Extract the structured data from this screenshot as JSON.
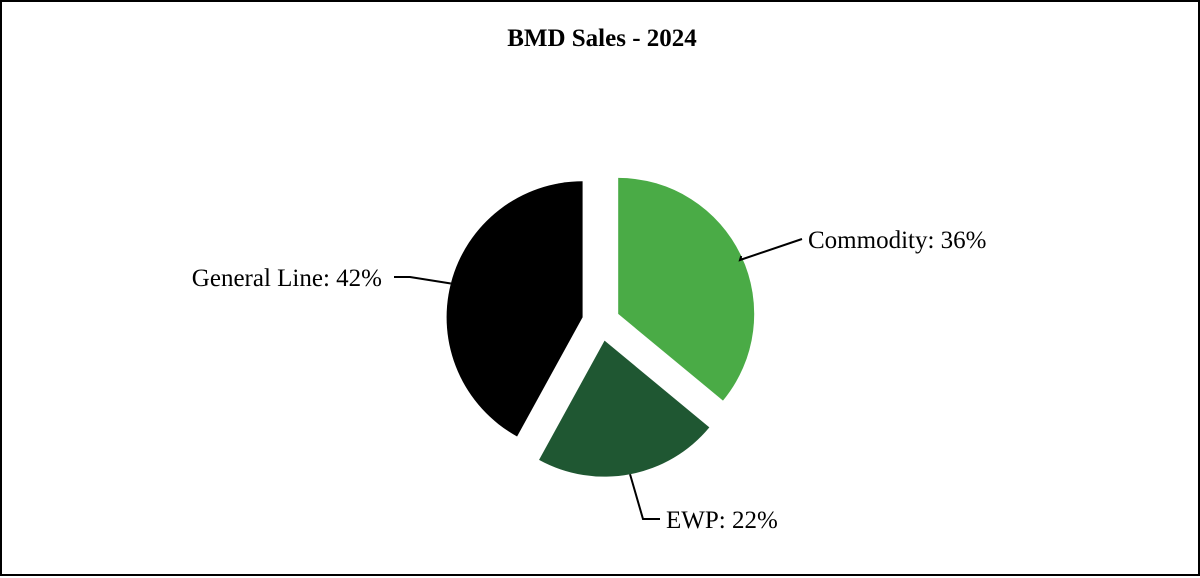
{
  "chart_data": {
    "type": "pie",
    "title": "BMD Sales - 2024",
    "categories": [
      "Commodity",
      "EWP",
      "General Line"
    ],
    "values": [
      36,
      22,
      42
    ],
    "labels": [
      "Commodity: 36%",
      "EWP: 22%",
      "General Line: 42%"
    ],
    "colors": [
      "#4aab46",
      "#1f5732",
      "#000000"
    ],
    "exploded": true,
    "legend": "none"
  }
}
